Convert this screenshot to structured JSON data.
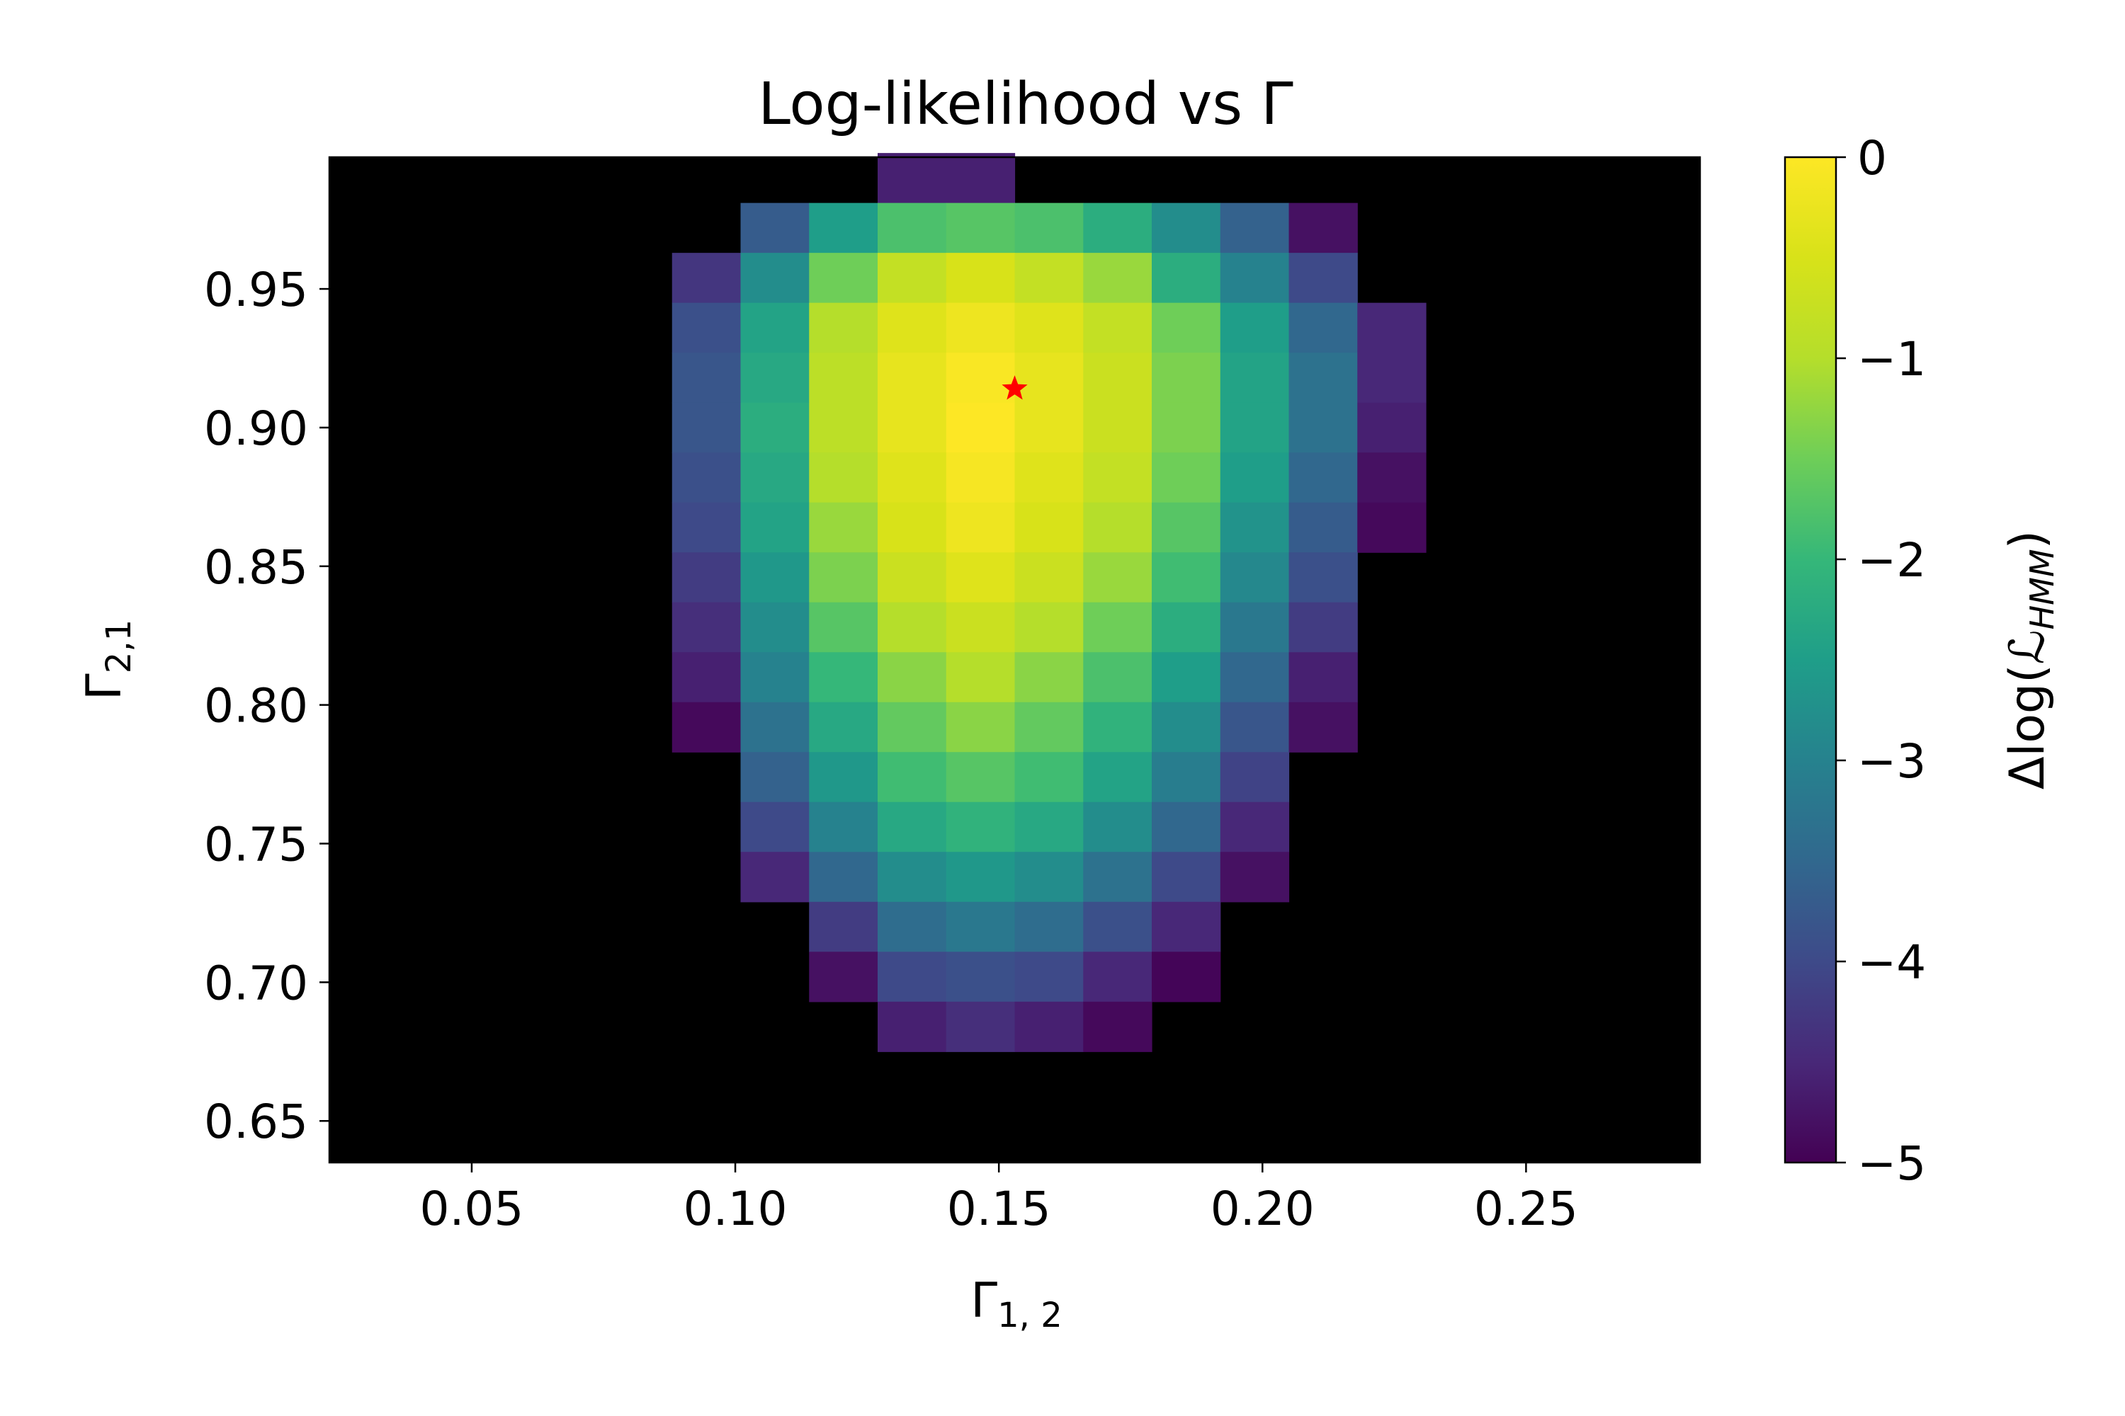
{
  "chart_data": {
    "type": "heatmap",
    "title": "Log-likelihood vs Γ",
    "xlabel": "Γ",
    "xlabel_sub": "1, 2",
    "ylabel": "Γ",
    "ylabel_sub": "2,1",
    "colorbar_label": "Δlog(",
    "colorbar_label_script": "ℒ",
    "colorbar_label_sub": "HMM",
    "colorbar_label_close": ")",
    "colormap": "viridis",
    "background_color": "#000000",
    "masked_below": -5,
    "xlim": [
      0.023,
      0.283
    ],
    "ylim": [
      0.635,
      0.9975
    ],
    "x_ticks": [
      0.05,
      0.1,
      0.15,
      0.2,
      0.25
    ],
    "x_tick_labels": [
      "0.05",
      "0.10",
      "0.15",
      "0.20",
      "0.25"
    ],
    "y_ticks": [
      0.65,
      0.7,
      0.75,
      0.8,
      0.85,
      0.9,
      0.95
    ],
    "y_tick_labels": [
      "0.65",
      "0.70",
      "0.75",
      "0.80",
      "0.85",
      "0.90",
      "0.95"
    ],
    "clim": [
      -5,
      0
    ],
    "colorbar_ticks": [
      0,
      -1,
      -2,
      -3,
      -4,
      -5
    ],
    "colorbar_tick_labels": [
      "0",
      "−1",
      "−2",
      "−3",
      "−4",
      "−5"
    ],
    "x_centers": [
      0.0945,
      0.1075,
      0.1205,
      0.1335,
      0.1465,
      0.1595,
      0.1725,
      0.1855,
      0.1985,
      0.2115,
      0.2245,
      0.2375
    ],
    "y_centers": [
      0.99,
      0.972,
      0.954,
      0.936,
      0.918,
      0.9,
      0.882,
      0.864,
      0.846,
      0.828,
      0.81,
      0.792,
      0.774,
      0.756,
      0.738,
      0.72,
      0.702,
      0.684
    ],
    "values": [
      [
        null,
        null,
        null,
        -4.6,
        -4.6,
        null,
        null,
        null,
        null,
        null,
        null,
        null
      ],
      [
        null,
        -3.7,
        -2.5,
        -1.8,
        -1.7,
        -1.8,
        -2.2,
        -2.8,
        -3.6,
        -4.8,
        null,
        null
      ],
      [
        -4.3,
        -2.8,
        -1.5,
        -0.8,
        -0.5,
        -0.8,
        -1.2,
        -2.2,
        -3.0,
        -4.0,
        null,
        null
      ],
      [
        -3.9,
        -2.4,
        -1.0,
        -0.4,
        -0.2,
        -0.4,
        -0.8,
        -1.5,
        -2.5,
        -3.5,
        -4.5,
        null
      ],
      [
        -3.8,
        -2.3,
        -0.9,
        -0.3,
        -0.05,
        -0.3,
        -0.7,
        -1.4,
        -2.4,
        -3.3,
        -4.5,
        null
      ],
      [
        -3.8,
        -2.2,
        -0.9,
        -0.3,
        0.0,
        -0.3,
        -0.7,
        -1.4,
        -2.4,
        -3.3,
        -4.6,
        null
      ],
      [
        -3.9,
        -2.3,
        -1.0,
        -0.4,
        -0.1,
        -0.4,
        -0.8,
        -1.5,
        -2.5,
        -3.5,
        -4.8,
        null
      ],
      [
        -4.0,
        -2.4,
        -1.2,
        -0.5,
        -0.2,
        -0.5,
        -1.0,
        -1.7,
        -2.7,
        -3.7,
        -4.9,
        null
      ],
      [
        -4.2,
        -2.6,
        -1.4,
        -0.7,
        -0.4,
        -0.7,
        -1.2,
        -1.9,
        -2.9,
        -3.9,
        null,
        null
      ],
      [
        -4.4,
        -2.8,
        -1.7,
        -1.0,
        -0.7,
        -1.0,
        -1.5,
        -2.2,
        -3.2,
        -4.2,
        null,
        null
      ],
      [
        -4.6,
        -3.0,
        -2.0,
        -1.3,
        -1.0,
        -1.3,
        -1.8,
        -2.5,
        -3.5,
        -4.6,
        null,
        null
      ],
      [
        -4.9,
        -3.3,
        -2.3,
        -1.6,
        -1.3,
        -1.6,
        -2.1,
        -2.8,
        -3.8,
        -4.8,
        null,
        null
      ],
      [
        null,
        -3.6,
        -2.6,
        -1.9,
        -1.7,
        -1.9,
        -2.4,
        -3.1,
        -4.1,
        null,
        null,
        null
      ],
      [
        null,
        -4.0,
        -3.0,
        -2.3,
        -2.1,
        -2.3,
        -2.8,
        -3.5,
        -4.5,
        null,
        null,
        null
      ],
      [
        null,
        -4.5,
        -3.5,
        -2.8,
        -2.6,
        -2.8,
        -3.3,
        -4.0,
        -4.8,
        null,
        null,
        null
      ],
      [
        null,
        null,
        -4.2,
        -3.4,
        -3.2,
        -3.4,
        -3.9,
        -4.5,
        null,
        null,
        null,
        null
      ],
      [
        null,
        null,
        -4.8,
        -4.0,
        -3.9,
        -4.0,
        -4.5,
        -4.95,
        null,
        null,
        null,
        null
      ],
      [
        null,
        null,
        null,
        -4.6,
        -4.4,
        -4.6,
        -4.9,
        null,
        null,
        null,
        null,
        null
      ]
    ],
    "best_fit": {
      "x": 0.153,
      "y": 0.914,
      "marker": "star",
      "color": "#ff0000"
    }
  }
}
